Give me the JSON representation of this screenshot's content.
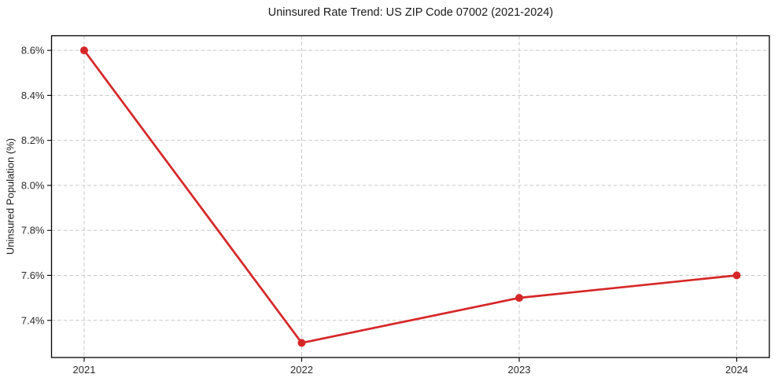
{
  "chart_data": {
    "type": "line",
    "title": "Uninsured Rate Trend: US ZIP Code 07002 (2021-2024)",
    "xlabel": "",
    "ylabel": "Uninsured Population (%)",
    "x": [
      2021,
      2022,
      2023,
      2024
    ],
    "categories": [
      "2021",
      "2022",
      "2023",
      "2024"
    ],
    "series": [
      {
        "name": "Uninsured Rate",
        "values": [
          8.6,
          7.3,
          7.5,
          7.6
        ]
      }
    ],
    "yticks": [
      7.4,
      7.6,
      7.8,
      8.0,
      8.2,
      8.4,
      8.6
    ],
    "ytick_labels": [
      "7.4%",
      "7.6%",
      "7.8%",
      "8.0%",
      "8.2%",
      "8.4%",
      "8.6%"
    ],
    "xlim": [
      2020.85,
      2024.15
    ],
    "ylim": [
      7.235,
      8.665
    ],
    "grid": true,
    "grid_style": "dashed",
    "legend": "none",
    "colors": {
      "line": "#d62728",
      "marker": "#d62728",
      "grid": "#c9c9c9",
      "spine": "#000000",
      "background": "#ffffff"
    }
  }
}
